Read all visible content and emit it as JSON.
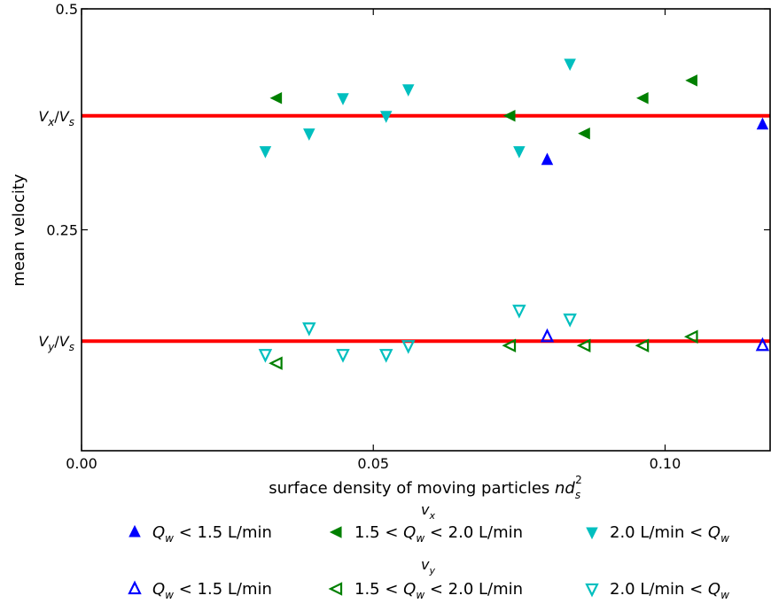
{
  "chart_data": {
    "type": "scatter",
    "xlabel": "surface density of moving particles nd_s^2",
    "ylabel": "mean velocity",
    "xlim": [
      0.0,
      0.118
    ],
    "ylim": [
      0.0,
      0.5
    ],
    "xticks": [
      {
        "value": 0.0,
        "label": "0.00"
      },
      {
        "value": 0.05,
        "label": "0.05"
      },
      {
        "value": 0.1,
        "label": "0.10"
      }
    ],
    "yticks": [
      {
        "value": 0.25,
        "label": "0.25"
      },
      {
        "value": 0.5,
        "label": "0.5"
      }
    ],
    "reference_lines": [
      {
        "y": 0.379,
        "label": "V_x/V_s",
        "color": "#ff0000"
      },
      {
        "y": 0.124,
        "label": "V_y/V_s",
        "color": "#ff0000"
      }
    ],
    "series": [
      {
        "name": "Q_w < 1.5 L/min",
        "component": "v_x",
        "marker": "triangle-up",
        "filled": true,
        "color": "#0000ff",
        "points": [
          [
            0.0798,
            0.329
          ],
          [
            0.1167,
            0.369
          ]
        ]
      },
      {
        "name": "1.5 < Q_w < 2.0 L/min",
        "component": "v_x",
        "marker": "triangle-left",
        "filled": true,
        "color": "#008000",
        "points": [
          [
            0.0335,
            0.399
          ],
          [
            0.0735,
            0.379
          ],
          [
            0.0863,
            0.359
          ],
          [
            0.0963,
            0.399
          ],
          [
            0.1047,
            0.419
          ]
        ]
      },
      {
        "name": "2.0 L/min < Q_w",
        "component": "v_x",
        "marker": "triangle-down",
        "filled": true,
        "color": "#00bfbf",
        "points": [
          [
            0.0315,
            0.339
          ],
          [
            0.039,
            0.359
          ],
          [
            0.0448,
            0.399
          ],
          [
            0.0522,
            0.379
          ],
          [
            0.056,
            0.409
          ],
          [
            0.075,
            0.339
          ],
          [
            0.0837,
            0.438
          ]
        ]
      },
      {
        "name": "Q_w < 1.5 L/min",
        "component": "v_y",
        "marker": "triangle-up",
        "filled": false,
        "color": "#0000ff",
        "points": [
          [
            0.0798,
            0.129
          ],
          [
            0.1167,
            0.119
          ]
        ]
      },
      {
        "name": "1.5 < Q_w < 2.0 L/min",
        "component": "v_y",
        "marker": "triangle-left",
        "filled": false,
        "color": "#008000",
        "points": [
          [
            0.0335,
            0.099
          ],
          [
            0.0735,
            0.119
          ],
          [
            0.0863,
            0.119
          ],
          [
            0.0963,
            0.119
          ],
          [
            0.1047,
            0.129
          ]
        ]
      },
      {
        "name": "2.0 L/min < Q_w",
        "component": "v_y",
        "marker": "triangle-down",
        "filled": false,
        "color": "#00bfbf",
        "points": [
          [
            0.0315,
            0.109
          ],
          [
            0.039,
            0.139
          ],
          [
            0.0448,
            0.109
          ],
          [
            0.0522,
            0.109
          ],
          [
            0.056,
            0.119
          ],
          [
            0.075,
            0.159
          ],
          [
            0.0837,
            0.149
          ]
        ]
      }
    ],
    "legend": {
      "placement": "bottom",
      "groups": [
        {
          "title": "v_x",
          "filled": true,
          "entries": [
            {
              "marker": "triangle-up",
              "color": "#0000ff",
              "label": "Q_w < 1.5 L/min"
            },
            {
              "marker": "triangle-left",
              "color": "#008000",
              "label": "1.5 < Q_w < 2.0 L/min"
            },
            {
              "marker": "triangle-down",
              "color": "#00bfbf",
              "label": "2.0 L/min < Q_w"
            }
          ]
        },
        {
          "title": "v_y",
          "filled": false,
          "entries": [
            {
              "marker": "triangle-up",
              "color": "#0000ff",
              "label": "Q_w < 1.5 L/min"
            },
            {
              "marker": "triangle-left",
              "color": "#008000",
              "label": "1.5 < Q_w < 2.0 L/min"
            },
            {
              "marker": "triangle-down",
              "color": "#00bfbf",
              "label": "2.0 L/min < Q_w"
            }
          ]
        }
      ]
    }
  }
}
